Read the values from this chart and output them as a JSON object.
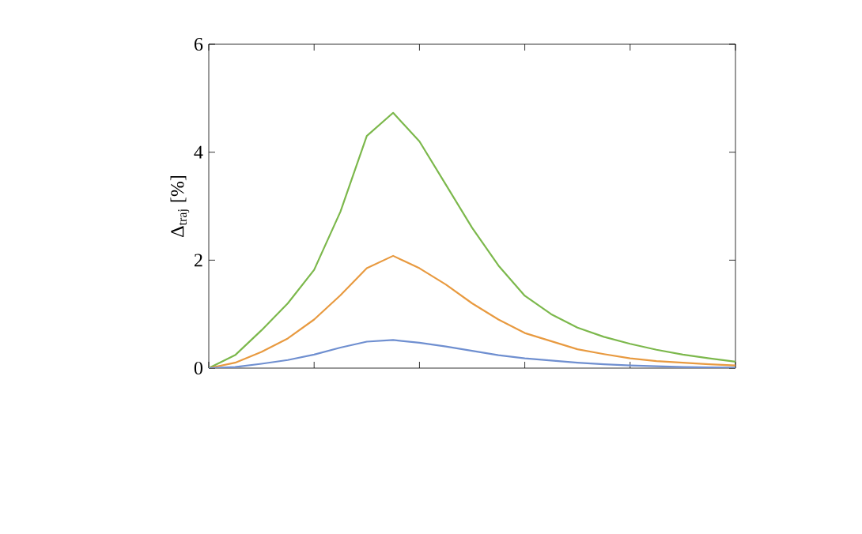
{
  "chart_data": {
    "type": "line",
    "ylabel": "Δ$_{traj}$ [%]",
    "ylim": [
      0,
      6
    ],
    "yticks": [
      0,
      2,
      4,
      6
    ],
    "tick_labels": "y",
    "categories": [
      null,
      null,
      null,
      null,
      null,
      null,
      null,
      null,
      null,
      null,
      null,
      null,
      null,
      null,
      null,
      null,
      null,
      null,
      null,
      null,
      null
    ],
    "series": [
      {
        "color": "#7cb84c",
        "values": [
          0,
          0.24,
          0.7,
          1.2,
          1.82,
          2.9,
          4.3,
          4.73,
          4.2,
          3.4,
          2.6,
          1.9,
          1.34,
          1.0,
          0.75,
          0.58,
          0.45,
          0.34,
          0.25,
          0.18,
          0.12
        ]
      },
      {
        "color": "#e89a40",
        "values": [
          0,
          0.1,
          0.3,
          0.55,
          0.9,
          1.35,
          1.85,
          2.08,
          1.85,
          1.55,
          1.2,
          0.9,
          0.65,
          0.5,
          0.35,
          0.26,
          0.18,
          0.13,
          0.1,
          0.07,
          0.05
        ]
      },
      {
        "color": "#6f8fd0",
        "values": [
          0,
          0.02,
          0.08,
          0.15,
          0.25,
          0.38,
          0.49,
          0.52,
          0.47,
          0.4,
          0.32,
          0.24,
          0.18,
          0.14,
          0.1,
          0.07,
          0.05,
          0.035,
          0.02,
          0.015,
          0.01
        ]
      }
    ]
  }
}
